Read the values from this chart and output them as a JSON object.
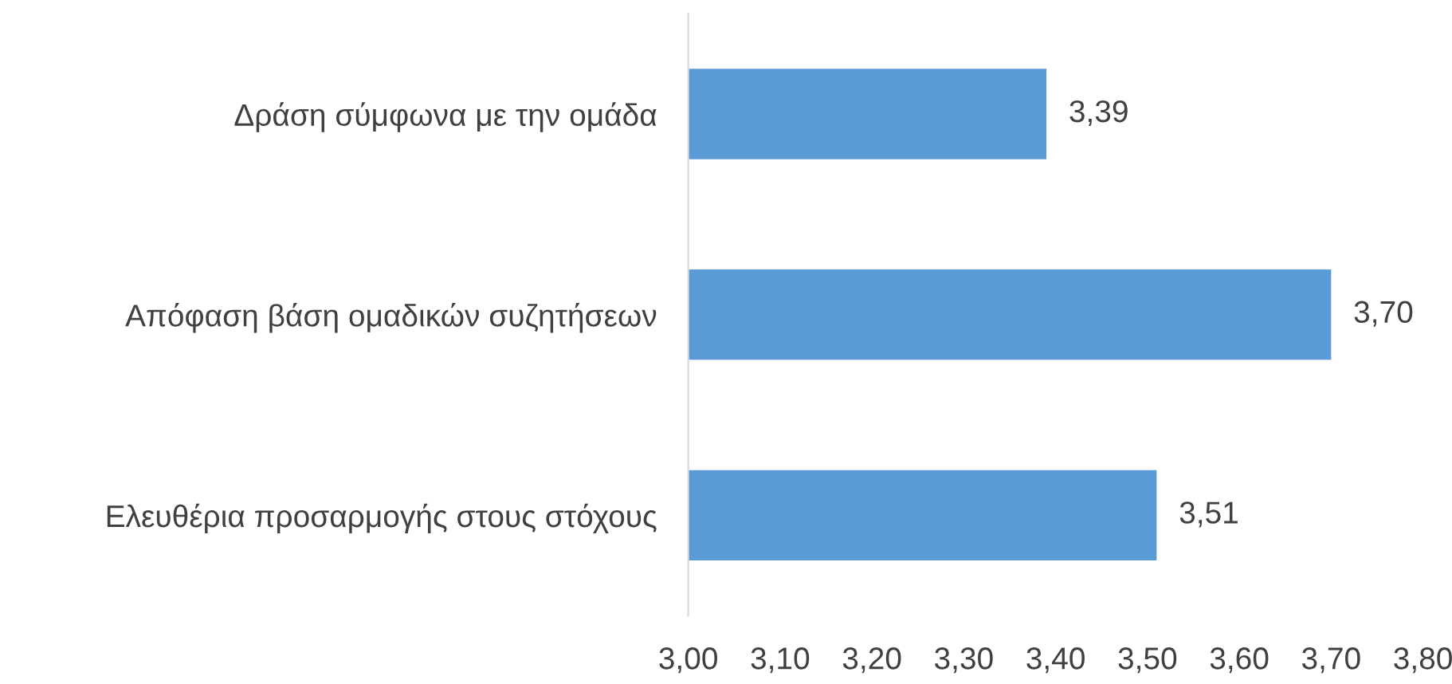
{
  "chart_data": {
    "type": "bar",
    "orientation": "horizontal",
    "categories": [
      "Δράση σύμφωνα με την ομάδα",
      "Απόφαση βάση ομαδικών συζητήσεων",
      "Ελευθέρια προσαρμογής στους στόχους"
    ],
    "values": [
      3.39,
      3.7,
      3.51
    ],
    "value_labels": [
      "3,39",
      "3,70",
      "3,51"
    ],
    "color": "#5b9bd5",
    "xlim": [
      3.0,
      3.8
    ],
    "xticks": [
      {
        "value": 3.0,
        "label": "3,00"
      },
      {
        "value": 3.1,
        "label": "3,10"
      },
      {
        "value": 3.2,
        "label": "3,20"
      },
      {
        "value": 3.3,
        "label": "3,30"
      },
      {
        "value": 3.4,
        "label": "3,40"
      },
      {
        "value": 3.5,
        "label": "3,50"
      },
      {
        "value": 3.6,
        "label": "3,60"
      },
      {
        "value": 3.7,
        "label": "3,70"
      },
      {
        "value": 3.8,
        "label": "3,80"
      }
    ],
    "grid": false,
    "legend": false
  }
}
